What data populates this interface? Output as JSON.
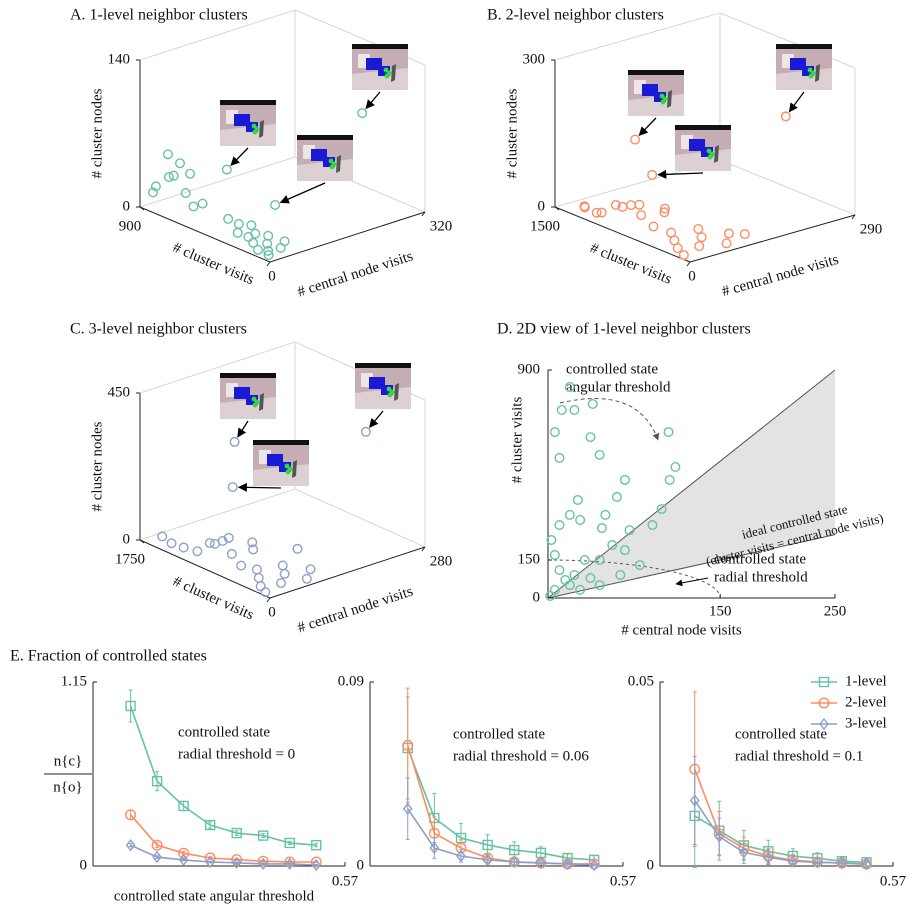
{
  "chart_data": [
    {
      "type": "scatter3d",
      "title": "A. 1-level neighbor clusters",
      "xlabel": "# central node visits",
      "ylabel": "# cluster visits",
      "zlabel": "# cluster nodes",
      "xlim": [
        0,
        320
      ],
      "xticks": [
        0,
        320
      ],
      "ylim": [
        0,
        900
      ],
      "yticks": [
        900
      ],
      "zlim": [
        0,
        140
      ],
      "zticks": [
        0,
        140
      ],
      "color": "#66c2a5",
      "x": [
        5,
        10,
        20,
        15,
        30,
        40,
        8,
        25,
        50,
        12,
        35,
        60,
        18,
        45,
        5,
        10,
        3,
        8,
        15,
        6,
        12,
        20,
        4,
        10,
        250,
        60,
        100
      ],
      "y": [
        100,
        150,
        80,
        200,
        120,
        60,
        250,
        300,
        180,
        50,
        220,
        100,
        350,
        280,
        600,
        700,
        800,
        650,
        750,
        550,
        850,
        620,
        720,
        500,
        200,
        500,
        300
      ],
      "z": [
        5,
        8,
        3,
        10,
        6,
        4,
        12,
        15,
        7,
        2,
        9,
        5,
        18,
        12,
        30,
        40,
        25,
        55,
        35,
        20,
        15,
        45,
        60,
        25,
        93,
        50,
        22
      ]
    },
    {
      "type": "scatter3d",
      "title": "B. 2-level neighbor clusters",
      "xlabel": "# central node visits",
      "ylabel": "# cluster visits",
      "zlabel": "# cluster nodes",
      "xlim": [
        0,
        290
      ],
      "xticks": [
        0,
        290
      ],
      "ylim": [
        0,
        1500
      ],
      "yticks": [
        1500
      ],
      "zlim": [
        0,
        300
      ],
      "zticks": [
        0,
        300
      ],
      "color": "#fc8d62",
      "x": [
        5,
        10,
        20,
        40,
        60,
        80,
        15,
        30,
        50,
        100,
        8,
        25,
        70,
        120,
        3,
        12,
        35,
        5,
        10,
        20,
        6,
        15,
        200,
        30,
        60
      ],
      "y": [
        100,
        200,
        300,
        150,
        250,
        100,
        500,
        400,
        600,
        200,
        800,
        700,
        350,
        150,
        1000,
        900,
        500,
        1200,
        1100,
        1300,
        600,
        750,
        200,
        800,
        800
      ],
      "z": [
        5,
        10,
        15,
        8,
        12,
        4,
        30,
        20,
        40,
        10,
        50,
        35,
        18,
        6,
        25,
        45,
        60,
        20,
        15,
        10,
        70,
        55,
        216,
        180,
        98
      ]
    },
    {
      "type": "scatter3d",
      "title": "C. 3-level neighbor clusters",
      "xlabel": "# central node visits",
      "ylabel": "# cluster visits",
      "zlabel": "# cluster nodes",
      "xlim": [
        0,
        280
      ],
      "xticks": [
        0,
        280
      ],
      "ylim": [
        0,
        1750
      ],
      "yticks": [
        1750
      ],
      "zlim": [
        0,
        450
      ],
      "zticks": [
        0,
        450
      ],
      "color": "#8da0cb",
      "x": [
        5,
        10,
        20,
        40,
        60,
        80,
        15,
        30,
        50,
        100,
        8,
        25,
        70,
        3,
        12,
        35,
        5,
        10,
        20,
        6,
        15,
        90,
        200,
        30,
        40
      ],
      "y": [
        100,
        200,
        300,
        150,
        250,
        100,
        500,
        400,
        600,
        200,
        800,
        700,
        350,
        1000,
        900,
        500,
        1200,
        1400,
        1600,
        600,
        750,
        300,
        200,
        700,
        800
      ],
      "z": [
        5,
        10,
        20,
        8,
        15,
        4,
        40,
        30,
        60,
        12,
        80,
        50,
        25,
        40,
        70,
        100,
        30,
        20,
        15,
        120,
        90,
        70,
        377,
        390,
        236
      ]
    },
    {
      "type": "scatter",
      "title": "D.  2D view of 1-level neighbor clusters",
      "xlabel": "# central node visits",
      "ylabel": "# cluster visits",
      "xlim": [
        0,
        250
      ],
      "xticks": [
        150,
        250
      ],
      "ylim": [
        0,
        900
      ],
      "yticks": [
        0,
        150,
        900
      ],
      "color": "#66c2a5",
      "annotations": [
        "controlled state",
        "angular threshold",
        "ideal controlled state",
        "(cluster visits = central node visits)",
        "controlled state",
        "radial threshold"
      ],
      "x": [
        19,
        39,
        12,
        23,
        105,
        6,
        10,
        45,
        37,
        111,
        106,
        67,
        60,
        91,
        99,
        47,
        50,
        19,
        28,
        71,
        56,
        67,
        45,
        10,
        26,
        32,
        6,
        10,
        23,
        37,
        19,
        6,
        15,
        3,
        28,
        45,
        63,
        80,
        2
      ],
      "y": [
        833,
        766,
        742,
        742,
        655,
        655,
        553,
        565,
        635,
        517,
        466,
        466,
        399,
        288,
        351,
        276,
        328,
        328,
        308,
        268,
        209,
        189,
        150,
        288,
        387,
        150,
        170,
        110,
        91,
        79,
        51,
        32,
        71,
        229,
        32,
        51,
        91,
        130,
        8
      ]
    },
    {
      "type": "line",
      "title": "E. Fraction of controlled states",
      "xlabel": "controlled state angular threshold",
      "ylabel": {
        "numerator": "n{c}",
        "denominator": "n{o}"
      },
      "xlim": [
        0,
        0.57
      ],
      "xticks": [
        0.57
      ],
      "ylim": [
        0,
        1.15
      ],
      "yticks": [
        0,
        1.15
      ],
      "annotations": [
        "controlled state",
        "radial threshold = 0"
      ],
      "x": [
        0.085,
        0.145,
        0.205,
        0.265,
        0.325,
        0.385,
        0.445,
        0.505
      ],
      "series": [
        {
          "color": "#66c2a5",
          "marker": "square",
          "values": [
            1.0,
            0.53,
            0.375,
            0.256,
            0.206,
            0.19,
            0.144,
            0.13
          ],
          "errors": [
            0.1,
            0.06,
            0.03,
            0.02,
            0.015,
            0.012,
            0.01,
            0.01
          ]
        },
        {
          "color": "#fc8d62",
          "marker": "circle",
          "values": [
            0.32,
            0.13,
            0.08,
            0.05,
            0.04,
            0.03,
            0.025,
            0.025
          ],
          "errors": [
            0.03,
            0.015,
            0.01,
            0.008,
            0.006,
            0.005,
            0.005,
            0.005
          ]
        },
        {
          "color": "#8da0cb",
          "marker": "diamond",
          "values": [
            0.13,
            0.056,
            0.038,
            0.025,
            0.02,
            0.013,
            0.013,
            0.006
          ],
          "errors": [
            0.01,
            0.008,
            0.006,
            0.005,
            0.004,
            0.004,
            0.003,
            0.003
          ]
        }
      ]
    },
    {
      "type": "line",
      "xlim": [
        0,
        0.57
      ],
      "xticks": [
        0.57
      ],
      "ylim": [
        0,
        0.09
      ],
      "yticks": [
        0,
        0.09
      ],
      "annotations": [
        "controlled state",
        "radial threshold = 0.06"
      ],
      "x": [
        0.085,
        0.145,
        0.205,
        0.265,
        0.325,
        0.385,
        0.445,
        0.505
      ],
      "series": [
        {
          "color": "#66c2a5",
          "marker": "square",
          "values": [
            0.0577,
            0.0235,
            0.0137,
            0.0103,
            0.0078,
            0.0064,
            0.0039,
            0.003
          ],
          "errors": [
            0.025,
            0.012,
            0.007,
            0.005,
            0.004,
            0.003,
            0.002,
            0.002
          ]
        },
        {
          "color": "#fc8d62",
          "marker": "circle",
          "values": [
            0.059,
            0.016,
            0.0088,
            0.0039,
            0.002,
            0.0015,
            0.001,
            0.001
          ],
          "errors": [
            0.028,
            0.008,
            0.004,
            0.002,
            0.0015,
            0.001,
            0.001,
            0.001
          ]
        },
        {
          "color": "#8da0cb",
          "marker": "diamond",
          "values": [
            0.028,
            0.0088,
            0.0049,
            0.003,
            0.002,
            0.0015,
            0.001,
            0.0005
          ],
          "errors": [
            0.015,
            0.005,
            0.003,
            0.002,
            0.0015,
            0.001,
            0.001,
            0.0005
          ]
        }
      ]
    },
    {
      "type": "line",
      "xlim": [
        0,
        0.57
      ],
      "xticks": [
        0.57
      ],
      "ylim": [
        0,
        0.05
      ],
      "yticks": [
        0,
        0.05
      ],
      "legend": "upper right",
      "annotations": [
        "controlled state",
        "radial threshold = 0.1"
      ],
      "x": [
        0.085,
        0.145,
        0.205,
        0.265,
        0.325,
        0.385,
        0.445,
        0.505
      ],
      "series": [
        {
          "name": "1-level",
          "color": "#66c2a5",
          "marker": "square",
          "values": [
            0.0136,
            0.0096,
            0.0056,
            0.004,
            0.0027,
            0.0021,
            0.0013,
            0.001
          ],
          "errors": [
            0.014,
            0.008,
            0.004,
            0.003,
            0.002,
            0.0015,
            0.001,
            0.001
          ]
        },
        {
          "name": "2-level",
          "color": "#fc8d62",
          "marker": "circle",
          "values": [
            0.0263,
            0.0088,
            0.0048,
            0.0027,
            0.0016,
            0.0011,
            0.0008,
            0.0005
          ],
          "errors": [
            0.021,
            0.006,
            0.003,
            0.002,
            0.0015,
            0.001,
            0.001,
            0.0005
          ]
        },
        {
          "name": "3-level",
          "color": "#8da0cb",
          "marker": "diamond",
          "values": [
            0.0178,
            0.008,
            0.0037,
            0.0024,
            0.0013,
            0.001,
            0.0008,
            0.0005
          ],
          "errors": [
            0.012,
            0.005,
            0.003,
            0.002,
            0.0015,
            0.001,
            0.001,
            0.0005
          ]
        }
      ]
    }
  ]
}
